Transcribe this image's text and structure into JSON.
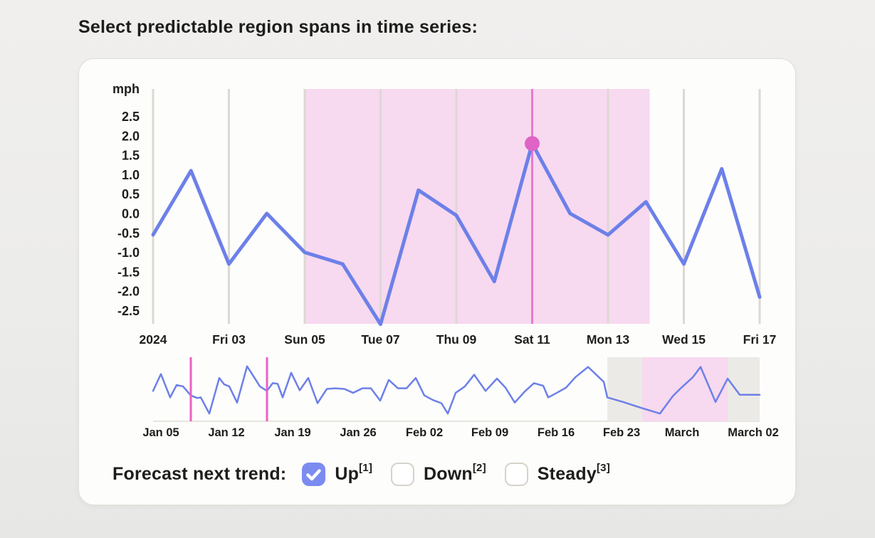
{
  "page": {
    "title": "Select predictable region spans in time series:"
  },
  "colors": {
    "accent_blue": "#6d80e8",
    "checkbox_blue": "#7b8bf0",
    "magenta_dot": "#de64c6",
    "magenta_vline": "#e879cf",
    "overview_cursor": "#ee5fc5",
    "pink_region": "#f7d9f0",
    "gray_band": "#eceae6",
    "gridline": "#dcd9d1",
    "axis_line": "#e7e4dd",
    "text": "#1d1d1b"
  },
  "chart_data": [
    {
      "type": "line",
      "role": "main",
      "unit": "mph",
      "y_ticks": [
        "2.5",
        "2.0",
        "1.5",
        "1.0",
        "0.5",
        "0.0",
        "-0.5",
        "-1.0",
        "-1.5",
        "-2.0",
        "-2.5"
      ],
      "y_tick_values": [
        2.5,
        2.0,
        1.5,
        1.0,
        0.5,
        0.0,
        -0.5,
        -1.0,
        -1.5,
        -2.0,
        -2.5
      ],
      "x_tick_labels": [
        "2024",
        "Fri 03",
        "Sun 05",
        "Tue 07",
        "Thu 09",
        "Sat 11",
        "Mon 13",
        "Wed 15",
        "Fri 17"
      ],
      "values": [
        -0.55,
        1.1,
        -1.3,
        0.0,
        -1.0,
        -1.3,
        -2.85,
        0.6,
        -0.05,
        -1.75,
        1.8,
        0.0,
        -0.55,
        0.3,
        -1.3,
        1.15,
        -2.15
      ],
      "ylim": [
        -2.9,
        3.2
      ],
      "grid": "vertical",
      "highlight_point": {
        "index": 10,
        "value": 1.8,
        "x_label": "Sat 11"
      },
      "selected_region": {
        "start_index": 4,
        "end_index": 13.1,
        "start_label": "Sun 05"
      }
    },
    {
      "type": "line",
      "role": "overview",
      "x_tick_labels": [
        "Jan 05",
        "Jan 12",
        "Jan 19",
        "Jan 26",
        "Feb 02",
        "Feb 09",
        "Feb 16",
        "Feb 23",
        "March",
        "March 02"
      ],
      "points": [
        [
          215,
          0.48
        ],
        [
          226,
          0.74
        ],
        [
          239,
          0.38
        ],
        [
          248,
          0.57
        ],
        [
          257,
          0.55
        ],
        [
          268,
          0.41
        ],
        [
          277,
          0.37
        ],
        [
          282,
          0.38
        ],
        [
          294,
          0.13
        ],
        [
          308,
          0.68
        ],
        [
          315,
          0.58
        ],
        [
          322,
          0.55
        ],
        [
          333,
          0.3
        ],
        [
          347,
          0.86
        ],
        [
          357,
          0.69
        ],
        [
          365,
          0.55
        ],
        [
          375,
          0.48
        ],
        [
          383,
          0.6
        ],
        [
          390,
          0.59
        ],
        [
          397,
          0.38
        ],
        [
          409,
          0.76
        ],
        [
          421,
          0.49
        ],
        [
          433,
          0.68
        ],
        [
          446,
          0.29
        ],
        [
          459,
          0.51
        ],
        [
          471,
          0.52
        ],
        [
          484,
          0.51
        ],
        [
          496,
          0.45
        ],
        [
          509,
          0.52
        ],
        [
          521,
          0.52
        ],
        [
          534,
          0.33
        ],
        [
          546,
          0.65
        ],
        [
          559,
          0.52
        ],
        [
          571,
          0.52
        ],
        [
          584,
          0.68
        ],
        [
          596,
          0.41
        ],
        [
          608,
          0.34
        ],
        [
          620,
          0.29
        ],
        [
          629,
          0.13
        ],
        [
          640,
          0.45
        ],
        [
          653,
          0.55
        ],
        [
          666,
          0.73
        ],
        [
          682,
          0.48
        ],
        [
          698,
          0.67
        ],
        [
          710,
          0.53
        ],
        [
          723,
          0.3
        ],
        [
          737,
          0.47
        ],
        [
          750,
          0.6
        ],
        [
          763,
          0.56
        ],
        [
          770,
          0.38
        ],
        [
          782,
          0.45
        ],
        [
          795,
          0.53
        ],
        [
          808,
          0.69
        ],
        [
          826,
          0.85
        ],
        [
          848,
          0.62
        ],
        [
          853,
          0.38
        ],
        [
          875,
          0.31
        ],
        [
          900,
          0.22
        ],
        [
          927,
          0.13
        ],
        [
          945,
          0.4
        ],
        [
          957,
          0.53
        ],
        [
          973,
          0.69
        ],
        [
          984,
          0.85
        ],
        [
          1005,
          0.31
        ],
        [
          1022,
          0.67
        ],
        [
          1039,
          0.42
        ],
        [
          1067,
          0.42
        ]
      ],
      "cursor_lines_x": [
        268,
        375
      ],
      "bands": {
        "gray": [
          853,
          1067
        ],
        "pink": [
          902,
          1022
        ]
      }
    }
  ],
  "forecast": {
    "label": "Forecast next trend:",
    "options": [
      {
        "label": "Up",
        "sup": "[1]",
        "checked": true
      },
      {
        "label": "Down",
        "sup": "[2]",
        "checked": false
      },
      {
        "label": "Steady",
        "sup": "[3]",
        "checked": false
      }
    ]
  }
}
